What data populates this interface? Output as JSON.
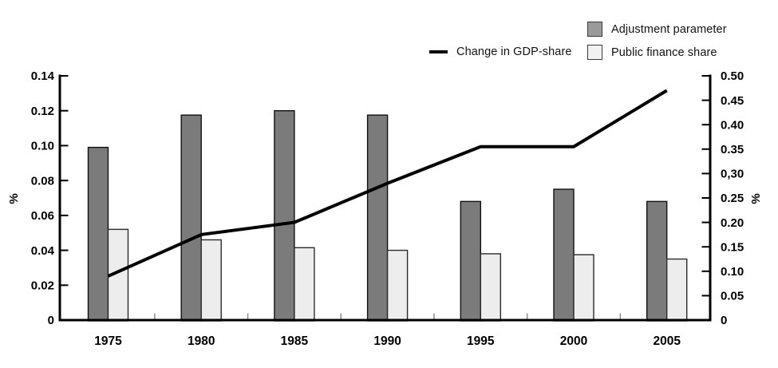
{
  "chart_data": {
    "type": "bar",
    "subtype": "grouped-bars-with-line-overlay",
    "categories": [
      "1975",
      "1980",
      "1985",
      "1990",
      "1995",
      "2000",
      "2005"
    ],
    "series": [
      {
        "name": "Adjustment parameter",
        "type": "bar",
        "axis": "left",
        "color": "#7b7b7b",
        "border_color": "#111111",
        "values": [
          0.099,
          0.1175,
          0.12,
          0.1175,
          0.068,
          0.075,
          0.068
        ]
      },
      {
        "name": "Public finance share",
        "type": "bar",
        "axis": "left",
        "color": "#ededed",
        "border_color": "#2b2b2b",
        "values": [
          0.052,
          0.046,
          0.0415,
          0.04,
          0.038,
          0.0375,
          0.035
        ]
      },
      {
        "name": "Change in GDP-share",
        "type": "line",
        "axis": "right",
        "color": "#000000",
        "values": [
          0.09,
          0.175,
          0.2,
          0.28,
          0.355,
          0.355,
          0.47
        ]
      }
    ],
    "left_axis": {
      "label": "%",
      "range": [
        0,
        0.14
      ],
      "tick_labels": [
        "0.14",
        "0.12",
        "0.10",
        "0.08",
        "0.06",
        "0.04",
        "0.02",
        "0"
      ],
      "tick_values": [
        0.14,
        0.12,
        0.1,
        0.08,
        0.06,
        0.04,
        0.02,
        0
      ]
    },
    "right_axis": {
      "label": "%",
      "range": [
        0,
        0.5
      ],
      "tick_labels": [
        "0.50",
        "0.45",
        "0.40",
        "0.35",
        "0,30",
        "0.25",
        "0.20",
        "0.15",
        "0.10",
        "0.05",
        "0"
      ],
      "tick_values": [
        0.5,
        0.45,
        0.4,
        0.35,
        0.3,
        0.25,
        0.2,
        0.15,
        0.1,
        0.05,
        0
      ]
    },
    "legend": [
      {
        "label": "Change in GDP-share",
        "swatch": "line"
      },
      {
        "label": "Adjustment parameter",
        "swatch": "dark-square",
        "swatch_color": "#9a9a9a"
      },
      {
        "label": "Public finance share",
        "swatch": "light-square",
        "swatch_color": "#f2f2f2"
      }
    ],
    "legend_position": "top-right",
    "grid": "off",
    "title": ""
  }
}
